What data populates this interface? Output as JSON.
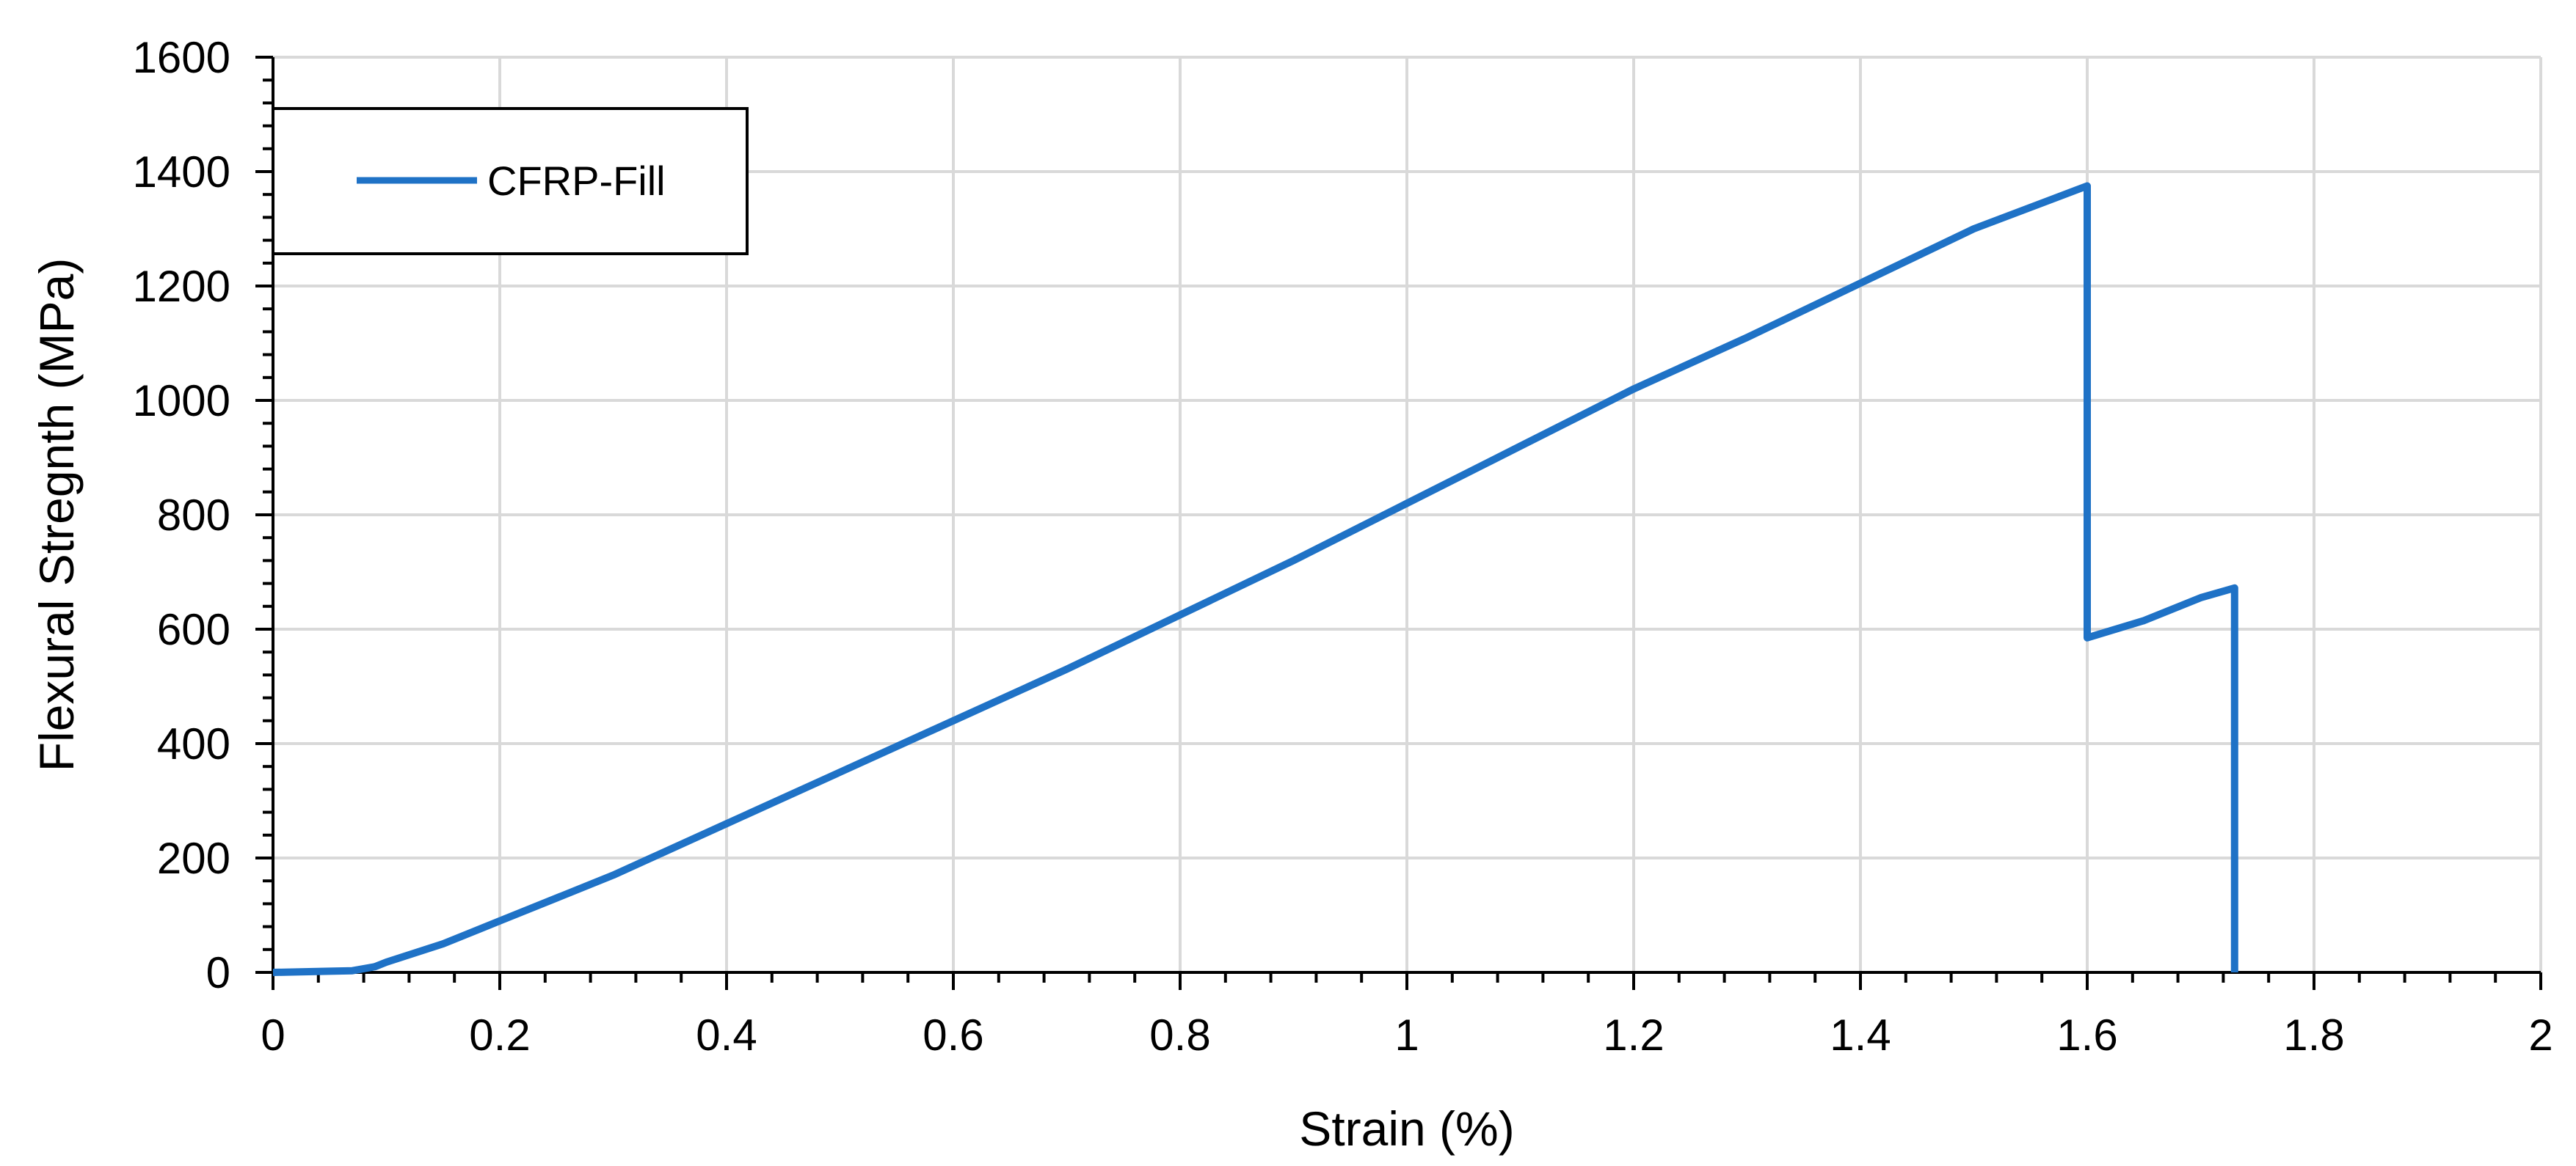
{
  "chart_data": {
    "type": "line",
    "title": "",
    "xlabel": "Strain (%)",
    "ylabel": "Flexural Stregnth (MPa)",
    "xlim": [
      0,
      2
    ],
    "ylim": [
      0,
      1600
    ],
    "x_ticks": [
      "0",
      "0.2",
      "0.4",
      "0.6",
      "0.8",
      "1",
      "1.2",
      "1.4",
      "1.6",
      "1.8",
      "2"
    ],
    "y_ticks": [
      "0",
      "200",
      "400",
      "600",
      "800",
      "1000",
      "1200",
      "1400",
      "1600"
    ],
    "grid": true,
    "legend_position": "top-left",
    "series": [
      {
        "name": "CFRP-Fill",
        "color": "#1F72C6",
        "points": [
          [
            0,
            0
          ],
          [
            0.05,
            2
          ],
          [
            0.07,
            3
          ],
          [
            0.09,
            10
          ],
          [
            0.1,
            18
          ],
          [
            0.15,
            50
          ],
          [
            0.2,
            90
          ],
          [
            0.3,
            170
          ],
          [
            0.4,
            260
          ],
          [
            0.5,
            350
          ],
          [
            0.6,
            440
          ],
          [
            0.7,
            530
          ],
          [
            0.8,
            625
          ],
          [
            0.9,
            720
          ],
          [
            1.0,
            820
          ],
          [
            1.1,
            920
          ],
          [
            1.2,
            1020
          ],
          [
            1.3,
            1110
          ],
          [
            1.4,
            1205
          ],
          [
            1.5,
            1300
          ],
          [
            1.6,
            1375
          ],
          [
            1.6,
            585
          ],
          [
            1.65,
            615
          ],
          [
            1.7,
            655
          ],
          [
            1.73,
            672
          ],
          [
            1.73,
            0
          ]
        ]
      }
    ]
  }
}
